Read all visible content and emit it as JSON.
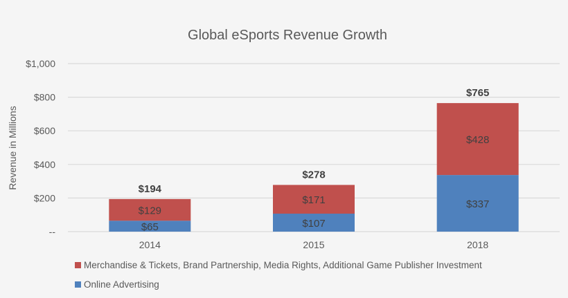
{
  "chart_data": {
    "type": "stacked-bar",
    "title": "Global eSports Revenue Growth",
    "xlabel": "",
    "ylabel": "Revenue in Millions",
    "categories": [
      "2014",
      "2015",
      "2018"
    ],
    "ylim": [
      0,
      1000
    ],
    "yticks": [
      0,
      200,
      400,
      600,
      800,
      1000
    ],
    "ytick_labels": [
      "--",
      "$200",
      "$400",
      "$600",
      "$800",
      "$1,000"
    ],
    "grid": true,
    "legend_position": "bottom-left",
    "series": [
      {
        "name": "Online Advertising",
        "color": "#4f81bd",
        "values": [
          65,
          107,
          337
        ],
        "labels": [
          "$65",
          "$107",
          "$337"
        ]
      },
      {
        "name": "Merchandise & Tickets, Brand Partnership, Media Rights, Additional Game Publisher Investment",
        "color": "#c0504d",
        "values": [
          129,
          171,
          428
        ],
        "labels": [
          "$129",
          "$171",
          "$428"
        ]
      }
    ],
    "totals": [
      194,
      278,
      765
    ],
    "total_labels": [
      "$194",
      "$278",
      "$765"
    ]
  }
}
